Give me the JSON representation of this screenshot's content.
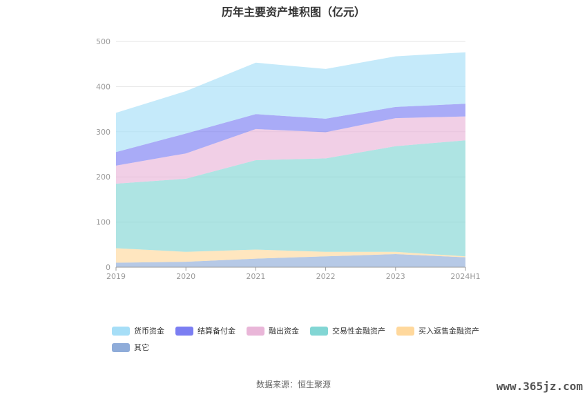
{
  "title": "历年主要资产堆积图（亿元）",
  "source": "数据来源：恒生聚源",
  "watermark": "www.365jz.com",
  "chart_data": {
    "type": "area",
    "stacked": true,
    "x": [
      "2019",
      "2020",
      "2021",
      "2022",
      "2023",
      "2024H1"
    ],
    "ylim": [
      0,
      500
    ],
    "yticks": [
      0,
      100,
      200,
      300,
      400,
      500
    ],
    "grid": true,
    "legend_position": "bottom",
    "series": [
      {
        "name": "其它",
        "color": "#8facd9",
        "values": [
          10,
          12,
          19,
          24,
          29,
          22
        ]
      },
      {
        "name": "买入返售金融资产",
        "color": "#ffd89c",
        "values": [
          32,
          22,
          20,
          10,
          5,
          2
        ]
      },
      {
        "name": "交易性金融资产",
        "color": "#82d6d4",
        "values": [
          143,
          162,
          198,
          207,
          234,
          257
        ]
      },
      {
        "name": "融出资金",
        "color": "#e9b6d8",
        "values": [
          40,
          56,
          69,
          58,
          62,
          53
        ]
      },
      {
        "name": "结算备付金",
        "color": "#7b7ef2",
        "values": [
          30,
          44,
          33,
          30,
          25,
          28
        ]
      },
      {
        "name": "货币资金",
        "color": "#a6def7",
        "values": [
          87,
          94,
          114,
          110,
          112,
          114
        ]
      }
    ],
    "legend_order": [
      "货币资金",
      "结算备付金",
      "融出资金",
      "交易性金融资产",
      "买入返售金融资产",
      "其它"
    ]
  }
}
